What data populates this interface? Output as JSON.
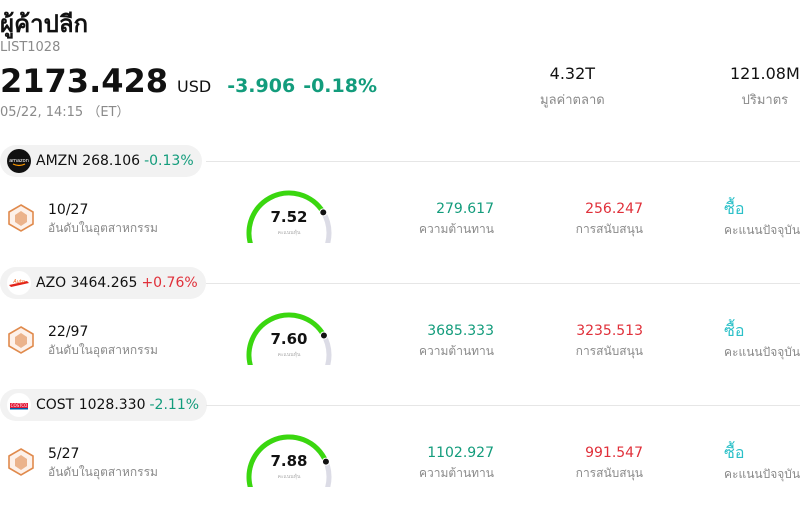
{
  "header": {
    "title": "ผู้ค้าปลีก",
    "list_id": "LIST1028",
    "price": "2173.428",
    "currency": "USD",
    "change": "-3.906",
    "change_pct": "-0.18%",
    "timestamp": "05/22, 14:15 （ET）"
  },
  "stats": {
    "market_cap": {
      "value": "4.32T",
      "label": "มูลค่าตลาด"
    },
    "volume": {
      "value": "121.08M",
      "label": "ปริมาตร"
    }
  },
  "colors": {
    "up": "#e0303a",
    "down": "#139c7c",
    "gauge": "#3ad70f",
    "rating": "#2bc0c8"
  },
  "stocks": [
    {
      "symbol": "AMZN",
      "price": "268.106",
      "change": "-0.13%",
      "direction": "down",
      "logo": "amazon-logo",
      "rank": "10/27",
      "rank_label": "อันดับในอุตสาหกรรม",
      "score": "7.52",
      "score_caption": "คะแนนหุ้น",
      "score_fraction": 0.752,
      "resistance": "279.617",
      "resistance_label": "ความต้านทาน",
      "support": "256.247",
      "support_label": "การสนับสนุน",
      "rating": "ซื้อ",
      "rating_label": "คะแนนปัจจุบัน"
    },
    {
      "symbol": "AZO",
      "price": "3464.265",
      "change": "+0.76%",
      "direction": "up",
      "logo": "autozone-logo",
      "rank": "22/97",
      "rank_label": "อันดับในอุตสาหกรรม",
      "score": "7.60",
      "score_caption": "คะแนนหุ้น",
      "score_fraction": 0.76,
      "resistance": "3685.333",
      "resistance_label": "ความต้านทาน",
      "support": "3235.513",
      "support_label": "การสนับสนุน",
      "rating": "ซื้อ",
      "rating_label": "คะแนนปัจจุบัน"
    },
    {
      "symbol": "COST",
      "price": "1028.330",
      "change": "-2.11%",
      "direction": "down",
      "logo": "costco-logo",
      "rank": "5/27",
      "rank_label": "อันดับในอุตสาหกรรม",
      "score": "7.88",
      "score_caption": "คะแนนหุ้น",
      "score_fraction": 0.788,
      "resistance": "1102.927",
      "resistance_label": "ความต้านทาน",
      "support": "991.547",
      "support_label": "การสนับสนุน",
      "rating": "ซื้อ",
      "rating_label": "คะแนนปัจจุบัน"
    }
  ]
}
